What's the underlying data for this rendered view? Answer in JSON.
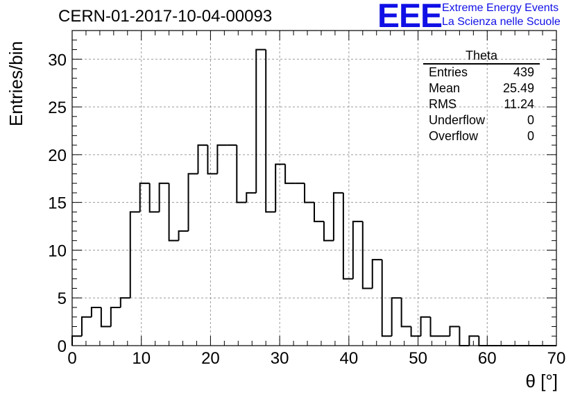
{
  "chart_data": {
    "type": "histogram",
    "title": "CERN-01-2017-10-04-00093",
    "xlabel": "θ [°]",
    "ylabel": "Entries/bin",
    "xlim": [
      0,
      70
    ],
    "ylim": [
      0,
      33
    ],
    "bin_width": 1.4,
    "grid": true,
    "x_ticks": [
      0,
      10,
      20,
      30,
      40,
      50,
      60,
      70
    ],
    "y_ticks": [
      0,
      5,
      10,
      15,
      20,
      25,
      30
    ],
    "values": [
      1,
      3,
      4,
      2,
      4,
      5,
      14,
      17,
      14,
      17,
      11,
      12,
      18,
      21,
      18,
      21,
      21,
      15,
      16,
      31,
      14,
      19,
      17,
      17,
      15,
      13,
      11,
      16,
      7,
      13,
      6,
      9,
      1,
      5,
      2,
      1,
      3,
      1,
      1,
      2,
      0,
      1,
      0,
      0,
      0,
      0,
      0,
      0,
      0,
      0
    ],
    "stats": {
      "name": "Theta",
      "entries": [
        {
          "label": "Entries",
          "value": "439"
        },
        {
          "label": "Mean",
          "value": "25.49"
        },
        {
          "label": "RMS",
          "value": "11.24"
        },
        {
          "label": "Underflow",
          "value": "0"
        },
        {
          "label": "Overflow",
          "value": "0"
        }
      ]
    }
  },
  "logo": {
    "mark": "EEE",
    "line1": "Extreme Energy Events",
    "line2": "La Scienza nelle Scuole"
  },
  "colors": {
    "logo": "#1010e6",
    "line": "#000000",
    "grid": "#999999"
  }
}
